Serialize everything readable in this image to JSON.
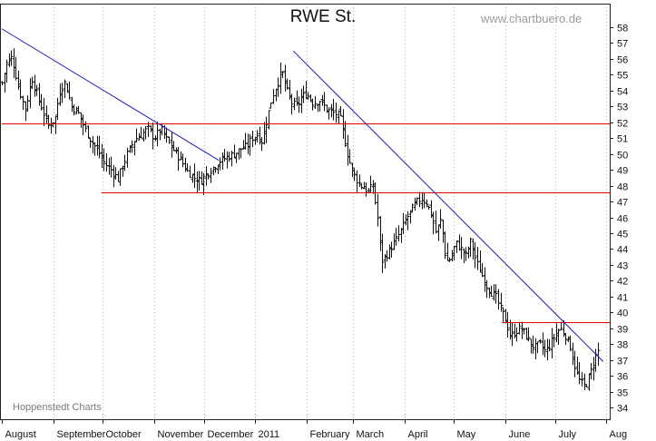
{
  "chart_data": {
    "type": "ohlc",
    "title": "RWE St.",
    "watermark": "www.chartbuero.de",
    "source": "Hoppenstedt Charts",
    "xlabel": "",
    "ylabel": "",
    "ylim": [
      34,
      58
    ],
    "y_axis_side": "right",
    "y_ticks": [
      34,
      35,
      36,
      37,
      38,
      39,
      40,
      41,
      42,
      43,
      44,
      45,
      46,
      47,
      48,
      49,
      50,
      51,
      52,
      53,
      54,
      55,
      56,
      57,
      58
    ],
    "grid": {
      "vertical": "dotted",
      "horizontal": false
    },
    "colors": {
      "bars": "#111111",
      "support_lines": "#e00000",
      "trend_lines": "#1a1acc",
      "grid": "#b0b0b0"
    },
    "months": [
      {
        "label": "August",
        "day": 0
      },
      {
        "label": "September",
        "day": 31
      },
      {
        "label": "October",
        "day": 61
      },
      {
        "label": "November",
        "day": 92
      },
      {
        "label": "December",
        "day": 122
      },
      {
        "label": "2011",
        "day": 153
      },
      {
        "label": "February",
        "day": 184
      },
      {
        "label": "March",
        "day": 212
      },
      {
        "label": "April",
        "day": 243
      },
      {
        "label": "May",
        "day": 273
      },
      {
        "label": "June",
        "day": 304
      },
      {
        "label": "July",
        "day": 334
      },
      {
        "label": "Aug",
        "day": 365
      }
    ],
    "x_range_days": [
      0,
      367
    ],
    "price_points": [
      {
        "d": 0,
        "c": 54.5
      },
      {
        "d": 3,
        "c": 55.8
      },
      {
        "d": 6,
        "c": 56.1
      },
      {
        "d": 10,
        "c": 54.2
      },
      {
        "d": 14,
        "c": 52.8
      },
      {
        "d": 18,
        "c": 54.8
      },
      {
        "d": 22,
        "c": 53.5
      },
      {
        "d": 25,
        "c": 52.6
      },
      {
        "d": 28,
        "c": 51.8
      },
      {
        "d": 32,
        "c": 52.2
      },
      {
        "d": 35,
        "c": 54.0
      },
      {
        "d": 38,
        "c": 54.5
      },
      {
        "d": 42,
        "c": 53.0
      },
      {
        "d": 46,
        "c": 52.6
      },
      {
        "d": 50,
        "c": 51.6
      },
      {
        "d": 54,
        "c": 50.8
      },
      {
        "d": 58,
        "c": 50.2
      },
      {
        "d": 62,
        "c": 49.4
      },
      {
        "d": 66,
        "c": 49.0
      },
      {
        "d": 70,
        "c": 48.4
      },
      {
        "d": 73,
        "c": 49.3
      },
      {
        "d": 76,
        "c": 50.1
      },
      {
        "d": 80,
        "c": 50.9
      },
      {
        "d": 84,
        "c": 51.2
      },
      {
        "d": 88,
        "c": 51.6
      },
      {
        "d": 92,
        "c": 51.0
      },
      {
        "d": 96,
        "c": 51.6
      },
      {
        "d": 100,
        "c": 50.8
      },
      {
        "d": 104,
        "c": 50.2
      },
      {
        "d": 108,
        "c": 49.6
      },
      {
        "d": 112,
        "c": 48.9
      },
      {
        "d": 116,
        "c": 48.5
      },
      {
        "d": 120,
        "c": 48.3
      },
      {
        "d": 124,
        "c": 48.8
      },
      {
        "d": 128,
        "c": 49.2
      },
      {
        "d": 132,
        "c": 49.6
      },
      {
        "d": 136,
        "c": 49.8
      },
      {
        "d": 140,
        "c": 50.0
      },
      {
        "d": 144,
        "c": 50.3
      },
      {
        "d": 148,
        "c": 50.5
      },
      {
        "d": 151,
        "c": 51.0
      },
      {
        "d": 154,
        "c": 51.2
      },
      {
        "d": 157,
        "c": 50.8
      },
      {
        "d": 160,
        "c": 52.2
      },
      {
        "d": 163,
        "c": 53.6
      },
      {
        "d": 166,
        "c": 54.4
      },
      {
        "d": 169,
        "c": 55.2
      },
      {
        "d": 172,
        "c": 54.0
      },
      {
        "d": 175,
        "c": 53.2
      },
      {
        "d": 178,
        "c": 53.0
      },
      {
        "d": 181,
        "c": 53.6
      },
      {
        "d": 184,
        "c": 53.8
      },
      {
        "d": 188,
        "c": 53.2
      },
      {
        "d": 192,
        "c": 53.4
      },
      {
        "d": 196,
        "c": 52.8
      },
      {
        "d": 200,
        "c": 52.6
      },
      {
        "d": 204,
        "c": 52.4
      },
      {
        "d": 209,
        "c": 49.8
      },
      {
        "d": 212,
        "c": 48.8
      },
      {
        "d": 215,
        "c": 48.2
      },
      {
        "d": 218,
        "c": 47.9
      },
      {
        "d": 221,
        "c": 47.6
      },
      {
        "d": 224,
        "c": 48.0
      },
      {
        "d": 227,
        "c": 45.8
      },
      {
        "d": 229,
        "c": 43.2
      },
      {
        "d": 232,
        "c": 43.6
      },
      {
        "d": 235,
        "c": 44.1
      },
      {
        "d": 238,
        "c": 44.6
      },
      {
        "d": 241,
        "c": 45.2
      },
      {
        "d": 244,
        "c": 45.9
      },
      {
        "d": 247,
        "c": 46.4
      },
      {
        "d": 250,
        "c": 46.9
      },
      {
        "d": 253,
        "c": 47.2
      },
      {
        "d": 256,
        "c": 47.0
      },
      {
        "d": 259,
        "c": 46.2
      },
      {
        "d": 262,
        "c": 45.0
      },
      {
        "d": 265,
        "c": 45.9
      },
      {
        "d": 268,
        "c": 43.2
      },
      {
        "d": 271,
        "c": 43.4
      },
      {
        "d": 274,
        "c": 44.4
      },
      {
        "d": 277,
        "c": 44.0
      },
      {
        "d": 280,
        "c": 43.6
      },
      {
        "d": 283,
        "c": 44.5
      },
      {
        "d": 286,
        "c": 43.3
      },
      {
        "d": 289,
        "c": 42.5
      },
      {
        "d": 292,
        "c": 41.8
      },
      {
        "d": 295,
        "c": 41.3
      },
      {
        "d": 298,
        "c": 41.0
      },
      {
        "d": 301,
        "c": 40.2
      },
      {
        "d": 304,
        "c": 39.5
      },
      {
        "d": 307,
        "c": 38.4
      },
      {
        "d": 310,
        "c": 38.8
      },
      {
        "d": 313,
        "c": 39.0
      },
      {
        "d": 316,
        "c": 38.6
      },
      {
        "d": 319,
        "c": 38.0
      },
      {
        "d": 322,
        "c": 37.8
      },
      {
        "d": 325,
        "c": 38.0
      },
      {
        "d": 328,
        "c": 37.5
      },
      {
        "d": 331,
        "c": 38.0
      },
      {
        "d": 334,
        "c": 38.6
      },
      {
        "d": 337,
        "c": 39.0
      },
      {
        "d": 340,
        "c": 38.6
      },
      {
        "d": 343,
        "c": 37.8
      },
      {
        "d": 346,
        "c": 36.5
      },
      {
        "d": 349,
        "c": 35.6
      },
      {
        "d": 352,
        "c": 35.3
      },
      {
        "d": 355,
        "c": 36.1
      },
      {
        "d": 358,
        "c": 37.2
      },
      {
        "d": 361,
        "c": 37.8
      }
    ],
    "support_lines": [
      {
        "y": 51.9,
        "from_day": 0,
        "to_day": 367
      },
      {
        "y": 47.6,
        "from_day": 60,
        "to_day": 367
      },
      {
        "y": 39.4,
        "from_day": 302,
        "to_day": 367
      }
    ],
    "trend_lines": [
      {
        "x1": 0,
        "y1": 57.9,
        "x2": 131,
        "y2": 49.6
      },
      {
        "x1": 176,
        "y1": 56.5,
        "x2": 363,
        "y2": 36.9
      }
    ]
  }
}
